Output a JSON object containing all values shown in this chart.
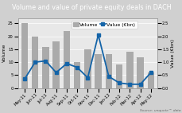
{
  "title": "Volume and value of private equity deals in DACH",
  "labels": [
    "May-11",
    "Jun-11",
    "Jul-11",
    "Aug-11",
    "Sep-11",
    "Oct-11",
    "Nov-11",
    "Dec-11",
    "Jan-12",
    "Feb-12",
    "Mar-12",
    "Apr-12",
    "May-12"
  ],
  "volume": [
    25,
    20,
    16,
    18,
    22,
    10,
    15,
    13,
    13,
    9,
    14,
    12,
    6
  ],
  "value": [
    0.35,
    1.0,
    1.05,
    0.6,
    0.95,
    0.8,
    0.4,
    2.05,
    0.45,
    0.2,
    0.15,
    0.15,
    0.6
  ],
  "bar_color": "#aaaaaa",
  "line_color": "#1464a8",
  "plot_bg_color": "#e8e8e8",
  "title_bg_color": "#8c8c8c",
  "fig_bg_color": "#d0d0d0",
  "volume_ylim": [
    0,
    27
  ],
  "value_ylim": [
    0,
    2.7
  ],
  "ylabel_left": "Volume",
  "ylabel_right": "Value (€bn)",
  "source_text": "Source: unquote™ data",
  "title_fontsize": 5.8,
  "axis_label_fontsize": 4.5,
  "tick_fontsize": 3.8,
  "legend_fontsize": 4.5,
  "source_fontsize": 3.2
}
